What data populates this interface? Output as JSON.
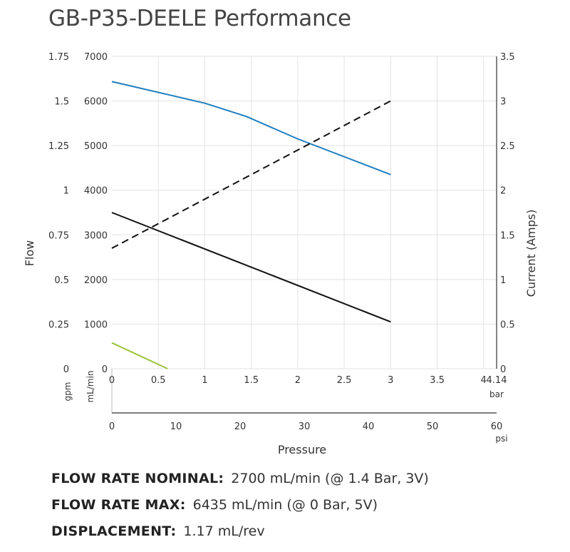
{
  "title": "GB-P35-DEELE Performance",
  "chart_data": {
    "type": "line",
    "title": "GB-P35-DEELE Performance",
    "xlabel": "Pressure",
    "ylabel_left": "Flow",
    "ylabel_right": "Current (Amps)",
    "axes": {
      "gpm": {
        "unit": "gpm",
        "range": [
          0,
          1.75
        ],
        "ticks": [
          "0",
          "0.25",
          "0.5",
          "0.75",
          "1",
          "1.25",
          "1.5",
          "1.75"
        ]
      },
      "ml_min": {
        "unit": "mL/min",
        "range": [
          0,
          7000
        ],
        "ticks": [
          "0",
          "1000",
          "2000",
          "3000",
          "4000",
          "5000",
          "6000",
          "7000"
        ]
      },
      "current": {
        "unit": "Amps",
        "range": [
          0,
          3.5
        ],
        "ticks": [
          "0",
          "0.5",
          "1",
          "1.5",
          "2",
          "2.5",
          "3",
          "3.5"
        ]
      },
      "bar": {
        "unit": "bar",
        "range": [
          0,
          4.14
        ],
        "ticks": [
          "0",
          "0.5",
          "1",
          "1.5",
          "2",
          "2.5",
          "3",
          "3.5",
          "4",
          "4.14"
        ]
      },
      "psi": {
        "unit": "psi",
        "range": [
          0,
          60
        ],
        "ticks": [
          "0",
          "10",
          "20",
          "30",
          "40",
          "50",
          "60"
        ]
      }
    },
    "series": [
      {
        "color": "#1f7fc0",
        "dash": "solid",
        "axis": "ml_min",
        "x": [
          0,
          1.0,
          1.45,
          2.0,
          3.0
        ],
        "values": [
          6435,
          5950,
          5650,
          5150,
          4350
        ]
      },
      {
        "color": "#111111",
        "dash": "dashed",
        "axis": "current",
        "x": [
          0,
          3.0
        ],
        "values": [
          1.35,
          3.0
        ]
      },
      {
        "color": "#111111",
        "dash": "solid",
        "axis": "ml_min",
        "x": [
          0,
          3.0
        ],
        "values": [
          3500,
          1050
        ]
      },
      {
        "color": "#9dc33b",
        "dash": "solid",
        "axis": "ml_min",
        "x": [
          0,
          0.6
        ],
        "values": [
          580,
          0
        ]
      }
    ],
    "grid": true
  },
  "specs": [
    {
      "key": "FLOW RATE NOMINAL:",
      "value": "2700 mL/min (@ 1.4 Bar, 3V)"
    },
    {
      "key": "FLOW RATE MAX:",
      "value": "6435 mL/min (@ 0 Bar, 5V)"
    },
    {
      "key": "DISPLACEMENT:",
      "value": "1.17 mL/rev"
    }
  ]
}
